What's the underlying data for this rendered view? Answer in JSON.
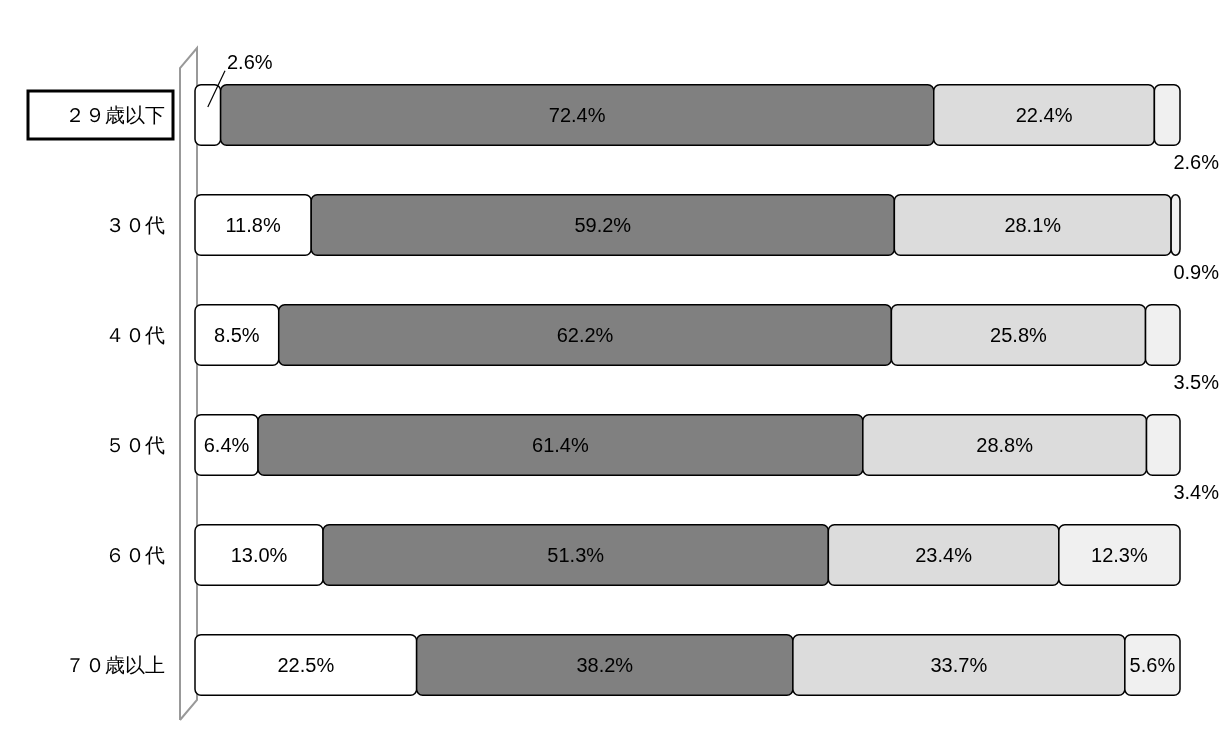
{
  "chart_data": {
    "type": "bar",
    "orientation": "horizontal",
    "stacked": true,
    "categories": [
      "２９歳以下",
      "３０代",
      "４０代",
      "５０代",
      "６０代",
      "７０歳以上"
    ],
    "series": [
      {
        "color": "#ffffff",
        "values": [
          2.6,
          11.8,
          8.5,
          6.4,
          13.0,
          22.5
        ],
        "value_labels": [
          "2.6%",
          "11.8%",
          "8.5%",
          "6.4%",
          "13.0%",
          "22.5%"
        ]
      },
      {
        "color": "#808080",
        "values": [
          72.4,
          59.2,
          62.2,
          61.4,
          51.3,
          38.2
        ],
        "value_labels": [
          "72.4%",
          "59.2%",
          "62.2%",
          "61.4%",
          "51.3%",
          "38.2%"
        ]
      },
      {
        "color": "#dcdcdc",
        "values": [
          22.4,
          28.1,
          25.8,
          28.8,
          23.4,
          33.7
        ],
        "value_labels": [
          "22.4%",
          "28.1%",
          "25.8%",
          "28.8%",
          "23.4%",
          "33.7%"
        ]
      },
      {
        "color": "#f0f0f0",
        "values": [
          2.6,
          0.9,
          3.5,
          3.4,
          12.3,
          5.6
        ],
        "value_labels": [
          "2.6%",
          "0.9%",
          "3.5%",
          "3.4%",
          "12.3%",
          "5.6%"
        ]
      }
    ]
  }
}
